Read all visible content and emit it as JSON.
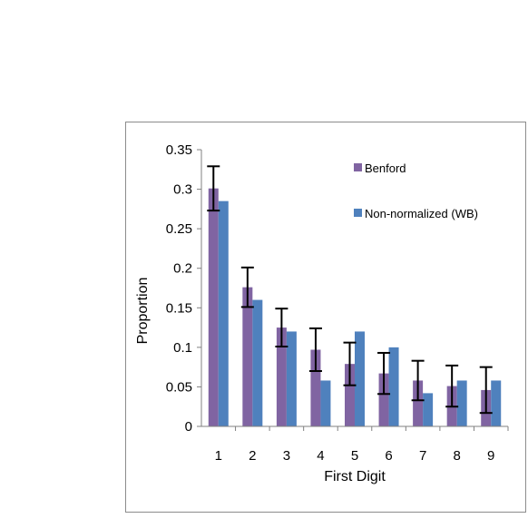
{
  "chart_data": {
    "type": "bar",
    "title": "",
    "xlabel": "First Digit",
    "ylabel": "Proportion",
    "categories": [
      "1",
      "2",
      "3",
      "4",
      "5",
      "6",
      "7",
      "8",
      "9"
    ],
    "ylim": [
      0,
      0.35
    ],
    "yticks": [
      0,
      0.05,
      0.1,
      0.15,
      0.2,
      0.25,
      0.3,
      0.35
    ],
    "ytick_labels": [
      "0",
      "0.05",
      "0.1",
      "0.15",
      "0.2",
      "0.25",
      "0.3",
      "0.35"
    ],
    "grid": false,
    "legend_position": "top-right",
    "series": [
      {
        "name": "Benford",
        "color": "#8064a2",
        "values": [
          0.301,
          0.176,
          0.125,
          0.097,
          0.079,
          0.067,
          0.058,
          0.051,
          0.046
        ],
        "error": [
          0.028,
          0.025,
          0.024,
          0.027,
          0.027,
          0.026,
          0.025,
          0.026,
          0.029
        ]
      },
      {
        "name": "Non-normalized (WB)",
        "color": "#4f81bd",
        "values": [
          0.285,
          0.16,
          0.12,
          0.058,
          0.12,
          0.1,
          0.042,
          0.058,
          0.058
        ]
      }
    ]
  }
}
